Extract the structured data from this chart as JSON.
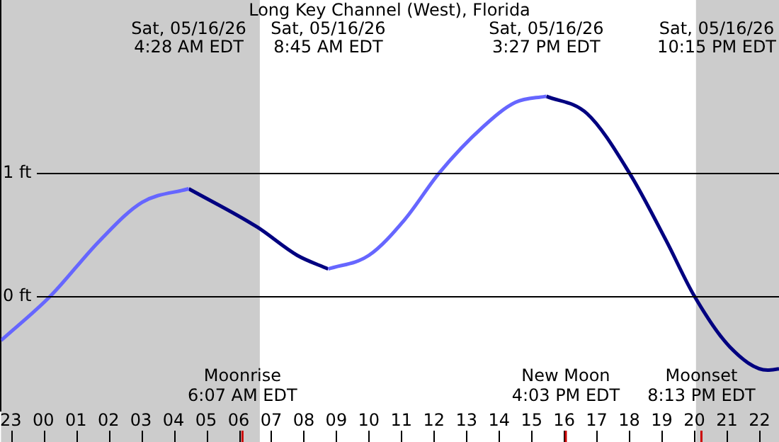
{
  "chart_data": {
    "type": "line",
    "title": "Long Key Channel (West), Florida",
    "xlim": [
      "--05-15T22:42",
      "--05-16T22:36"
    ],
    "ylim": [
      -0.93,
      2.4
    ],
    "xticks": [
      {
        "value": "--05-15T23:00",
        "label": "23"
      },
      {
        "value": "--05-16T00:00",
        "label": "00"
      },
      {
        "value": "--05-16T01:00",
        "label": "01"
      },
      {
        "value": "--05-16T02:00",
        "label": "02"
      },
      {
        "value": "--05-16T03:00",
        "label": "03"
      },
      {
        "value": "--05-16T04:00",
        "label": "04"
      },
      {
        "value": "--05-16T05:00",
        "label": "05"
      },
      {
        "value": "--05-16T06:00",
        "label": "06"
      },
      {
        "value": "--05-16T07:00",
        "label": "07"
      },
      {
        "value": "--05-16T08:00",
        "label": "08"
      },
      {
        "value": "--05-16T09:00",
        "label": "09"
      },
      {
        "value": "--05-16T10:00",
        "label": "10"
      },
      {
        "value": "--05-16T11:00",
        "label": "11"
      },
      {
        "value": "--05-16T12:00",
        "label": "12"
      },
      {
        "value": "--05-16T13:00",
        "label": "13"
      },
      {
        "value": "--05-16T14:00",
        "label": "14"
      },
      {
        "value": "--05-16T15:00",
        "label": "15"
      },
      {
        "value": "--05-16T16:00",
        "label": "16"
      },
      {
        "value": "--05-16T17:00",
        "label": "17"
      },
      {
        "value": "--05-16T18:00",
        "label": "18"
      },
      {
        "value": "--05-16T19:00",
        "label": "19"
      },
      {
        "value": "--05-16T20:00",
        "label": "20"
      },
      {
        "value": "--05-16T21:00",
        "label": "21"
      },
      {
        "value": "--05-16T22:00",
        "label": "22"
      }
    ],
    "yticks": [
      {
        "value": 0,
        "label": "0 ft"
      },
      {
        "value": 1,
        "label": "1 ft"
      }
    ],
    "grid": "y",
    "legend": false,
    "marker": "none",
    "line_style": "solid",
    "series": [
      {
        "color": "#6666ff",
        "x": [
          "--05-15T22:42",
          "--05-16T00:13",
          "--05-16T01:44",
          "--05-16T03:02",
          "--05-16T04:28",
          "--05-16T06:36",
          "--05-16T08:45",
          "--05-16T10:00",
          "--05-16T11:06",
          "--05-16T12:10",
          "--05-16T13:30",
          "--05-16T14:30",
          "--05-16T15:27"
        ],
        "values": [
          -0.36,
          0,
          0.45,
          0.76,
          0.87,
          null,
          0.22,
          0.33,
          0.62,
          1.0,
          1.37,
          1.57,
          1.62
        ]
      },
      {
        "color": "#000080",
        "x": [
          "--05-16T04:28",
          "--05-16T06:34",
          "--05-16T07:48",
          "--05-16T08:45",
          "--05-16T12:00",
          "--05-16T15:27",
          "--05-16T16:42",
          "--05-16T18:00",
          "--05-16T19:08",
          "--05-16T20:00",
          "--05-16T21:05",
          "--05-16T22:15",
          "--05-16T22:36"
        ],
        "values": [
          0.87,
          0.56,
          0.33,
          0.22,
          null,
          1.62,
          1.48,
          1.0,
          0.45,
          0,
          -0.41,
          -0.6,
          -0.59
        ]
      }
    ],
    "bands": [
      {
        "axis": "x",
        "from": "--05-15T22:42",
        "to": "--05-16T06:39",
        "color": "#cccccc"
      },
      {
        "axis": "x",
        "from": "--05-16T20:03",
        "to": "--05-16T22:36",
        "color": "#cccccc"
      }
    ],
    "ref_lines": [
      {
        "axis": "x",
        "value": "--05-16T06:07",
        "label": "Moonrise\n6:07 AM EDT",
        "color": "#cc0000"
      },
      {
        "axis": "x",
        "value": "--05-16T16:03",
        "label": "New Moon\n4:03 PM EDT",
        "color": "#cc0000"
      },
      {
        "axis": "x",
        "value": "--05-16T20:13",
        "label": "Moonset\n8:13 PM EDT",
        "color": "#cc0000"
      }
    ],
    "annotations": [
      "Sat, 05/16/26\n4:28 AM EDT",
      "Sat, 05/16/26\n8:45 AM EDT",
      "Sat, 05/16/26\n3:27 PM EDT",
      "Sat, 05/16/26\n10:15 PM EDT"
    ]
  }
}
